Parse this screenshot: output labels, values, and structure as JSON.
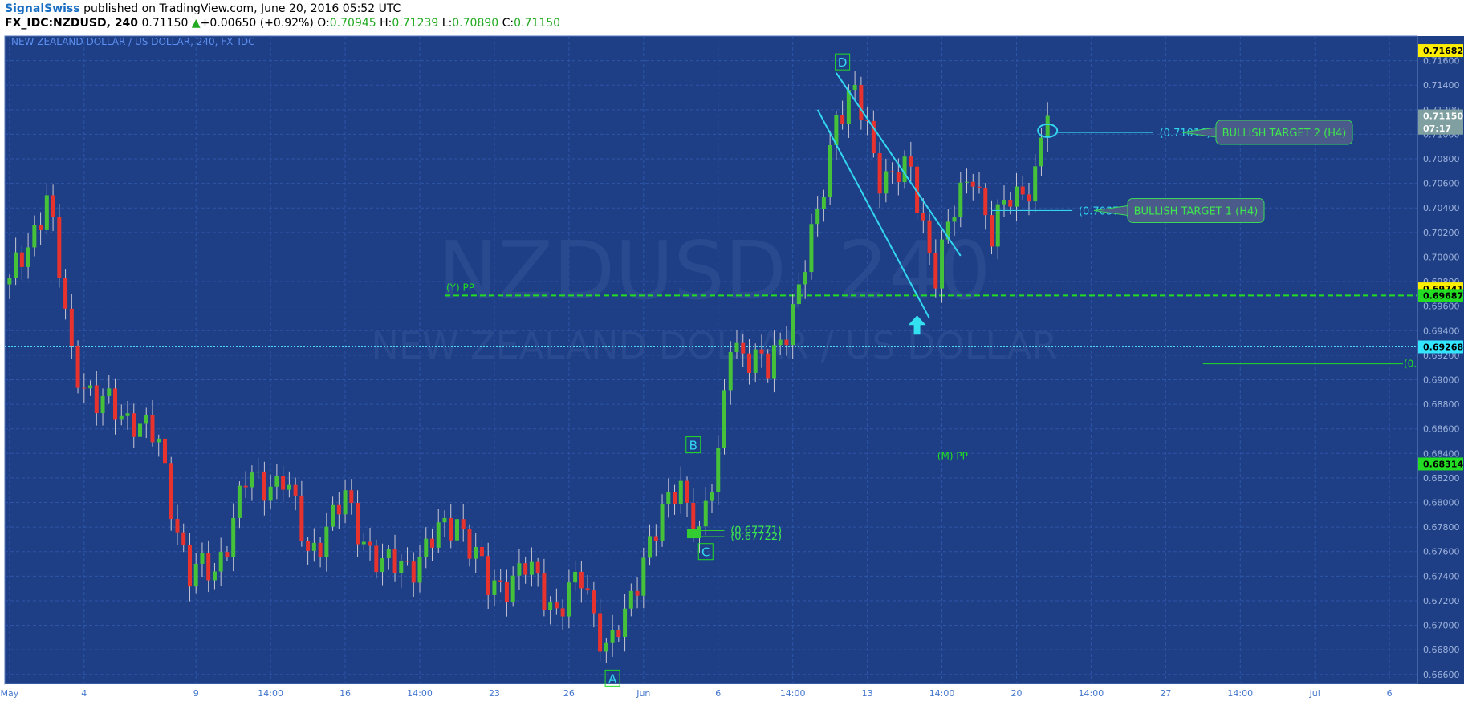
{
  "header": {
    "publisher": "SignalSwiss",
    "published_text": "published on TradingView.com, June 20, 2016 05:52 UTC",
    "symbol": "FX_IDC:NZDUSD, 240",
    "last": "0.71150",
    "change_arrow": "▲",
    "change": "+0.00650 (+0.92%)",
    "o_label": "O:",
    "o": "0.70945",
    "h_label": "H:",
    "h": "0.71239",
    "l_label": "L:",
    "l": "0.70890",
    "c_label": "C:",
    "c": "0.71150"
  },
  "chart_data": {
    "type": "candlestick",
    "title": "NEW ZEALAND DOLLAR / US DOLLAR, 240, FX_IDC",
    "watermark_symbol": "NZDUSD, 240",
    "watermark_name": "NEW ZEALAND DOLLAR / US DOLLAR",
    "ylim": [
      0.6652,
      0.718
    ],
    "y_ticks": [
      0.666,
      0.668,
      0.67,
      0.672,
      0.674,
      0.676,
      0.678,
      0.68,
      0.682,
      0.684,
      0.686,
      0.688,
      0.69,
      0.692,
      0.694,
      0.696,
      0.698,
      0.7,
      0.702,
      0.704,
      0.706,
      0.708,
      0.71,
      0.712,
      0.714,
      0.716
    ],
    "y_tick_labels": [
      "0.66600",
      "0.66800",
      "0.67000",
      "0.67200",
      "0.67400",
      "0.67600",
      "0.67800",
      "0.68000",
      "0.68200",
      "0.68400",
      "0.68600",
      "0.68800",
      "0.69000",
      "0.69200",
      "0.69400",
      "0.69600",
      "0.69800",
      "0.70000",
      "0.70200",
      "0.70400",
      "0.70600",
      "0.70800",
      "0.71000",
      "0.71200",
      "0.71400",
      "0.71600"
    ],
    "x_ticks": [
      {
        "bar": 0,
        "label": "May"
      },
      {
        "bar": 12,
        "label": "4"
      },
      {
        "bar": 30,
        "label": "9"
      },
      {
        "bar": 42,
        "label": "14:00"
      },
      {
        "bar": 54,
        "label": "16"
      },
      {
        "bar": 66,
        "label": "14:00"
      },
      {
        "bar": 78,
        "label": "23"
      },
      {
        "bar": 90,
        "label": "26"
      },
      {
        "bar": 102,
        "label": "Jun"
      },
      {
        "bar": 114,
        "label": "6"
      },
      {
        "bar": 126,
        "label": "14:00"
      },
      {
        "bar": 138,
        "label": "13"
      },
      {
        "bar": 150,
        "label": "14:00"
      },
      {
        "bar": 162,
        "label": "20"
      },
      {
        "bar": 174,
        "label": "14:00"
      },
      {
        "bar": 186,
        "label": "27"
      },
      {
        "bar": 198,
        "label": "14:00"
      },
      {
        "bar": 210,
        "label": "Jul"
      },
      {
        "bar": 222,
        "label": "6"
      }
    ],
    "anchors": [
      {
        "bar": 0,
        "close": 0.6975
      },
      {
        "bar": 6,
        "close": 0.705
      },
      {
        "bar": 10,
        "close": 0.692
      },
      {
        "bar": 14,
        "close": 0.688
      },
      {
        "bar": 20,
        "close": 0.687
      },
      {
        "bar": 24,
        "close": 0.6845
      },
      {
        "bar": 29,
        "close": 0.674
      },
      {
        "bar": 33,
        "close": 0.6745
      },
      {
        "bar": 38,
        "close": 0.6815
      },
      {
        "bar": 44,
        "close": 0.682
      },
      {
        "bar": 48,
        "close": 0.676
      },
      {
        "bar": 54,
        "close": 0.68
      },
      {
        "bar": 60,
        "close": 0.6745
      },
      {
        "bar": 66,
        "close": 0.6755
      },
      {
        "bar": 72,
        "close": 0.679
      },
      {
        "bar": 77,
        "close": 0.673
      },
      {
        "bar": 83,
        "close": 0.6745
      },
      {
        "bar": 88,
        "close": 0.6715
      },
      {
        "bar": 92,
        "close": 0.6735
      },
      {
        "bar": 96,
        "close": 0.6685
      },
      {
        "bar": 99,
        "close": 0.67
      },
      {
        "bar": 103,
        "close": 0.6775
      },
      {
        "bar": 108,
        "close": 0.681
      },
      {
        "bar": 111,
        "close": 0.678
      },
      {
        "bar": 114,
        "close": 0.683
      },
      {
        "bar": 116,
        "close": 0.6935
      },
      {
        "bar": 119,
        "close": 0.692
      },
      {
        "bar": 122,
        "close": 0.6905
      },
      {
        "bar": 127,
        "close": 0.6975
      },
      {
        "bar": 130,
        "close": 0.703
      },
      {
        "bar": 133,
        "close": 0.712
      },
      {
        "bar": 136,
        "close": 0.713
      },
      {
        "bar": 140,
        "close": 0.707
      },
      {
        "bar": 145,
        "close": 0.7065
      },
      {
        "bar": 149,
        "close": 0.699
      },
      {
        "bar": 152,
        "close": 0.7035
      },
      {
        "bar": 155,
        "close": 0.7075
      },
      {
        "bar": 158,
        "close": 0.7015
      },
      {
        "bar": 161,
        "close": 0.705
      },
      {
        "bar": 165,
        "close": 0.7065
      },
      {
        "bar": 167,
        "close": 0.7115
      }
    ],
    "last_bar": 167,
    "axis_bars": 227,
    "wave_labels": [
      {
        "text": "A",
        "bar": 97,
        "price": 0.6657
      },
      {
        "text": "B",
        "bar": 110,
        "price": 0.6847
      },
      {
        "text": "C",
        "bar": 112,
        "price": 0.676
      },
      {
        "text": "D",
        "bar": 134,
        "price": 0.7159
      }
    ],
    "levels": [
      {
        "label": "(Y) PP",
        "price": 0.69687,
        "color": "#22dd22",
        "badge": "0.69687",
        "dashed": true,
        "thick": true
      },
      {
        "label": "(M) PP",
        "price": 0.68314,
        "color": "#22dd22",
        "badge": "0.68314",
        "dashed": true,
        "thick": false
      }
    ],
    "targets": [
      {
        "value_label": "(0.71016)",
        "price": 0.71016,
        "note": "BULLISH TARGET 2 (H4)"
      },
      {
        "value_label": "(0.70379)",
        "price": 0.70379,
        "note": "BULLISH TARGET 1 (H4)"
      }
    ],
    "support_labels": [
      "(0.67771)",
      "(0.67722)"
    ],
    "support_prices": [
      0.67771,
      0.67722
    ],
    "hline_cyan": {
      "price": 0.69268,
      "badge": "0.69268"
    },
    "hline_green_right": {
      "price": 0.6913,
      "label": "(0."
    },
    "price_badges": [
      {
        "text": "0.71682",
        "price": 0.71682,
        "bg": "#ffee00",
        "fg": "#000000"
      },
      {
        "text": "0.71150",
        "price": 0.7115,
        "bg": "#7f9fa0",
        "fg": "#ffffff"
      },
      {
        "text": "07:17",
        "price": 0.7105,
        "bg": "#7f9fa0",
        "fg": "#ffffff"
      },
      {
        "text": "0.69741",
        "price": 0.69741,
        "bg": "#ffee00",
        "fg": "#000000"
      }
    ]
  }
}
